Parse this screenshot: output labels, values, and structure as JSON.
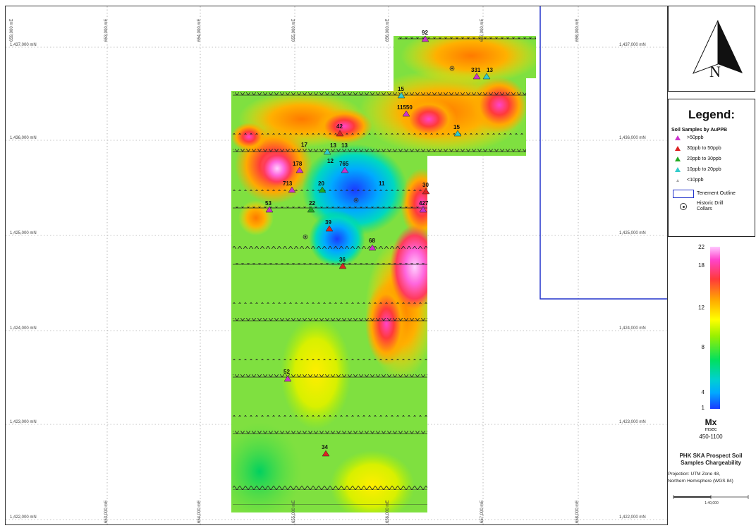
{
  "map": {
    "northings": {
      "top": "1,437,000 mN",
      "upper": "1,436,000 mN",
      "middle": "1,425,000 mN",
      "lower": "1,424,000 mN",
      "bottom_upper": "1,423,000 mN",
      "bottom": "1,422,000 mN"
    },
    "eastings": [
      "653,000 mE",
      "654,000 mE",
      "655,000 mE",
      "656,000 mE",
      "657,000 mE",
      "658,000 mE",
      "659,000 mE"
    ],
    "sample_labels": {
      "s92": "92",
      "s331": "331",
      "s13a": "13",
      "s15a": "15",
      "s11550": "11550",
      "s42": "42",
      "s15b": "15",
      "s17": "17",
      "s13b": "13",
      "s13c": "13",
      "s12": "12",
      "s765": "765",
      "s178": "178",
      "s713": "713",
      "s20": "20",
      "s11": "11",
      "s30": "30",
      "s53": "53",
      "s22": "22",
      "s427": "427",
      "s39": "39",
      "s68": "68",
      "s36": "36",
      "s52": "52",
      "s34": "34"
    },
    "colors": {
      "gt50": "#cc33cc",
      "p30_50": "#dd2222",
      "p20_30": "#22aa22",
      "p10_20": "#33cccc",
      "lt10": "#aaaaaa",
      "tenement": "#2233cc"
    }
  },
  "legend": {
    "title": "Legend:",
    "subtitle": "Soil Samples by AuPPB",
    "items": [
      {
        "label": ">50ppb",
        "color": "#cc33cc",
        "icon": "triangle-icon"
      },
      {
        "label": "30ppb to 50ppb",
        "color": "#dd2222",
        "icon": "triangle-icon"
      },
      {
        "label": "20ppb to 30ppb",
        "color": "#22aa22",
        "icon": "triangle-icon"
      },
      {
        "label": "10ppb to 20ppb",
        "color": "#33cccc",
        "icon": "triangle-icon"
      },
      {
        "label": "<10ppb",
        "color": "#aaaaaa",
        "icon": "small-triangle-icon"
      }
    ],
    "tenement_label": "Tenement Outline",
    "drill_label": "Historic Drill Collars"
  },
  "colorbar": {
    "ticks": [
      "22",
      "18",
      "12",
      "8",
      "4",
      "1"
    ],
    "variable": "Mx",
    "unit": "msec",
    "range": "450-1100"
  },
  "title_block": {
    "project_title": "PHK SKA Prospect Soil Samples Chargeability",
    "projection_line1": "Projection: UTM Zone 48,",
    "projection_line2": "Northern Hemisphere (WGS 84)",
    "scale_label": "1:40,000"
  }
}
